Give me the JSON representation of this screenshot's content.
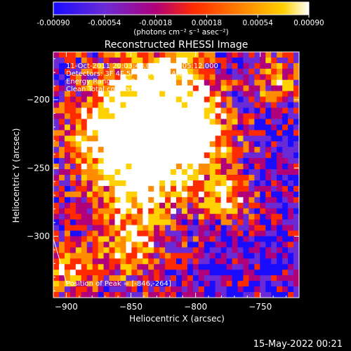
{
  "colors": {
    "background": "#000000",
    "foreground": "#ffffff",
    "colormap": [
      "#1a0cff",
      "#6a2bd6",
      "#b0007a",
      "#ff2a00",
      "#ff8b00",
      "#ffd100",
      "#ffffff"
    ]
  },
  "chart_data": {
    "type": "heatmap",
    "title": "Reconstructed RHESSI Image",
    "xlabel": "Heliocentric X (arcsec)",
    "ylabel": "Heliocentric Y (arcsec)",
    "xlim": [
      -910,
      -720
    ],
    "ylim": [
      -345,
      -165
    ],
    "x_ticks": [
      -900,
      -850,
      -800,
      -750
    ],
    "y_ticks": [
      -200,
      -250,
      -300
    ],
    "colorbar": {
      "range": [
        -0.0009,
        0.0009
      ],
      "ticks": [
        "-0.00090",
        "-0.00054",
        "-0.00018",
        "0.00018",
        "0.00054",
        "0.00090"
      ],
      "units": "(photons cm⁻² s⁻¹ asec⁻²)"
    },
    "annotations": [
      "11-Oct-2011 20:03:48.000 to 20:05:12.000",
      "Detectors: 3F 4F 5F 6F 7F 8F, Att 0",
      "Energy Range: 12.0 - 25.0 keV",
      "Clean     Total counts: 3.22E+03"
    ],
    "peak_label": "Position of Peak = [-846,-264]",
    "peak": [
      -846,
      -264
    ],
    "limb_visible": true
  },
  "footer": {
    "timestamp": "15-May-2022 00:21"
  }
}
